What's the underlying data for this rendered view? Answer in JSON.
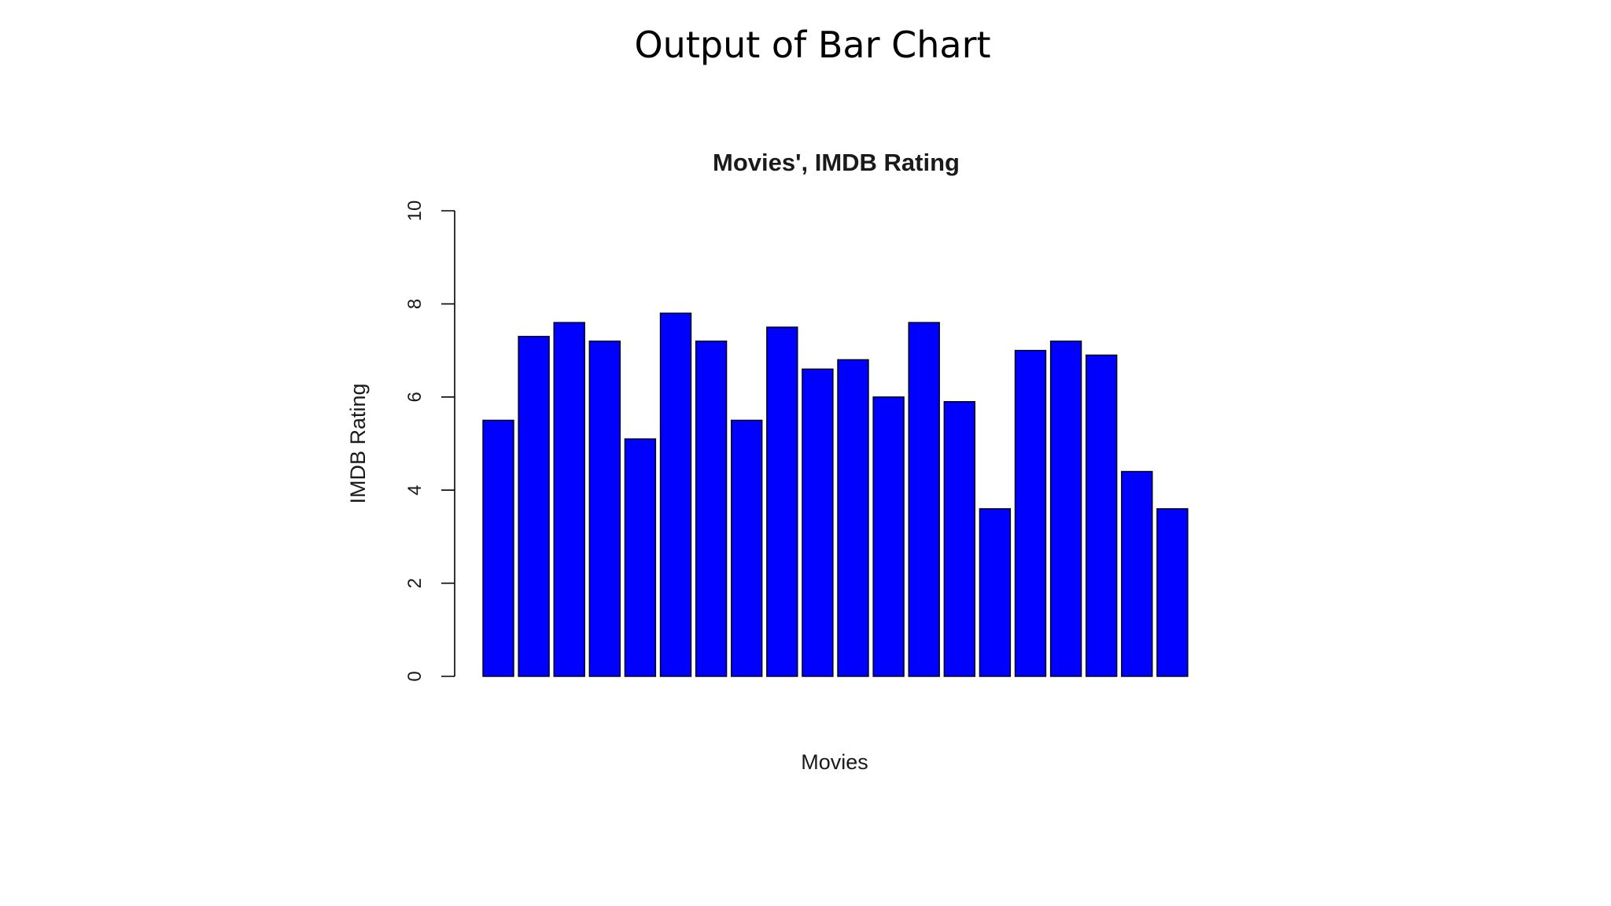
{
  "slide": {
    "title": "Output of Bar Chart"
  },
  "chart_data": {
    "type": "bar",
    "title": "Movies', IMDB Rating",
    "xlabel": "Movies",
    "ylabel": "IMDB Rating",
    "ylim": [
      0,
      10
    ],
    "yticks": [
      "0",
      "2",
      "4",
      "6",
      "8",
      "10"
    ],
    "values": [
      5.5,
      7.3,
      7.6,
      7.2,
      5.1,
      7.8,
      7.2,
      5.5,
      7.5,
      6.6,
      6.8,
      6.0,
      7.6,
      5.9,
      3.6,
      7.0,
      7.2,
      6.9,
      4.4,
      3.6
    ],
    "bar_color": "#0000FF",
    "bar_border_color": "#000000",
    "grid": false
  }
}
